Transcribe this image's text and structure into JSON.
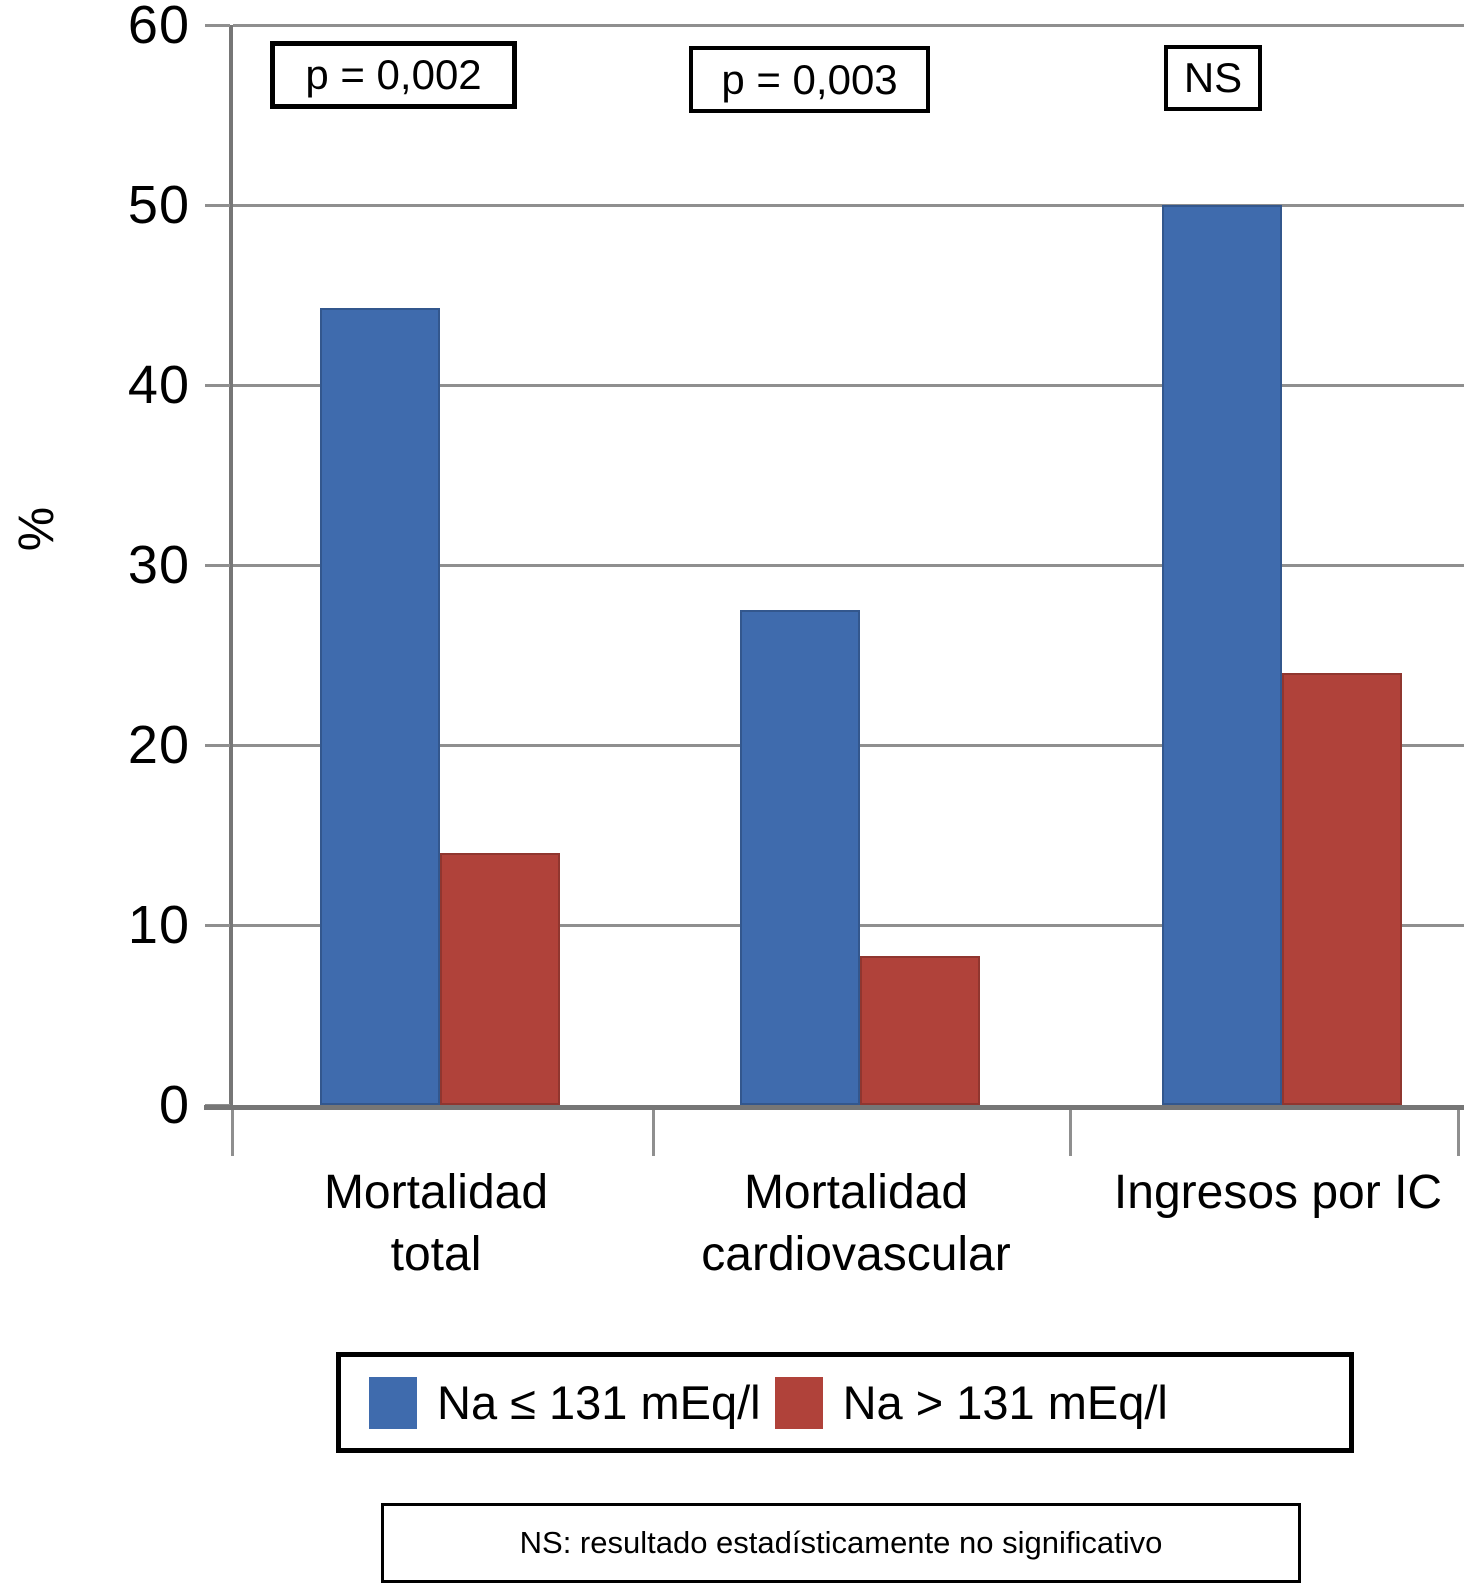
{
  "chart_data": {
    "type": "bar",
    "title": "",
    "ylabel": "%",
    "xlabel": "",
    "ylim": [
      0,
      60
    ],
    "yticks": [
      0,
      10,
      20,
      30,
      40,
      50,
      60
    ],
    "grid": true,
    "legend_position": "bottom",
    "categories": [
      {
        "line1": "Mortalidad",
        "line2": "total"
      },
      {
        "line1": "Mortalidad",
        "line2": "cardiovascular"
      },
      {
        "line1": "Ingresos por IC",
        "line2": ""
      }
    ],
    "series": [
      {
        "name": "Na ≤ 131 mEq/l",
        "color": "#3F6BAD",
        "values": [
          44.3,
          27.5,
          50
        ]
      },
      {
        "name": "Na > 131 mEq/l",
        "color": "#B0423A",
        "values": [
          14,
          8.3,
          24
        ]
      }
    ],
    "annotations": [
      {
        "label": "p = 0,002",
        "group": "Mortalidad total"
      },
      {
        "label": "p = 0,003",
        "group": "Mortalidad cardiovascular"
      },
      {
        "label": "NS",
        "group": "Ingresos por IC"
      }
    ],
    "footnote": "NS: resultado estadísticamente no significativo",
    "colors": {
      "axis": "#767676",
      "gridline": "#8f8f8f"
    }
  }
}
